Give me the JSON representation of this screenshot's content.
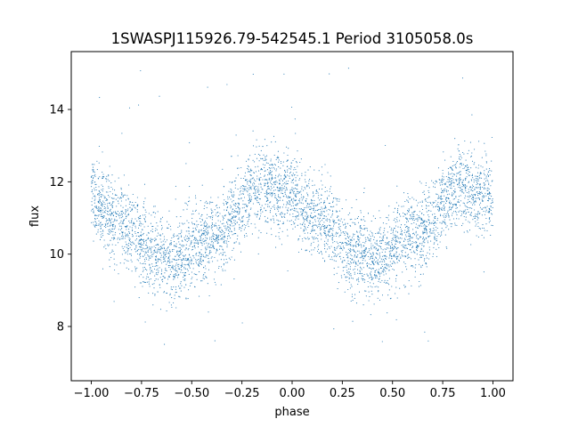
{
  "chart_data": {
    "type": "scatter",
    "title": "1SWASPJ115926.79-542545.1 Period 3105058.0s",
    "xlabel": "phase",
    "ylabel": "flux",
    "xlim": [
      -1.1,
      1.1
    ],
    "ylim": [
      6.5,
      15.6
    ],
    "xticks": [
      -1.0,
      -0.75,
      -0.5,
      -0.25,
      0.0,
      0.25,
      0.5,
      0.75,
      1.0
    ],
    "xtick_labels": [
      "−1.00",
      "−0.75",
      "−0.50",
      "−0.25",
      "0.00",
      "0.25",
      "0.50",
      "0.75",
      "1.00"
    ],
    "yticks": [
      8,
      10,
      12,
      14
    ],
    "ytick_labels": [
      "8",
      "10",
      "12",
      "14"
    ],
    "grid": false,
    "legend": "none",
    "marker_color": "#1f77b4",
    "series": [
      {
        "profile_phase": [
          0.0,
          0.05,
          0.1,
          0.15,
          0.2,
          0.25,
          0.3,
          0.35,
          0.4,
          0.45,
          0.5,
          0.55,
          0.6,
          0.65,
          0.7,
          0.75,
          0.8,
          0.85,
          0.9,
          0.95,
          1.0
        ],
        "profile_mean_flux": [
          11.7,
          11.3,
          11.0,
          10.9,
          10.7,
          10.3,
          10.0,
          10.1,
          9.7,
          9.9,
          10.1,
          10.4,
          10.5,
          10.6,
          10.9,
          11.4,
          11.8,
          11.9,
          11.8,
          11.6,
          11.7
        ],
        "scatter_sd": 0.55,
        "outlier_range": [
          7.0,
          15.2
        ]
      }
    ]
  }
}
